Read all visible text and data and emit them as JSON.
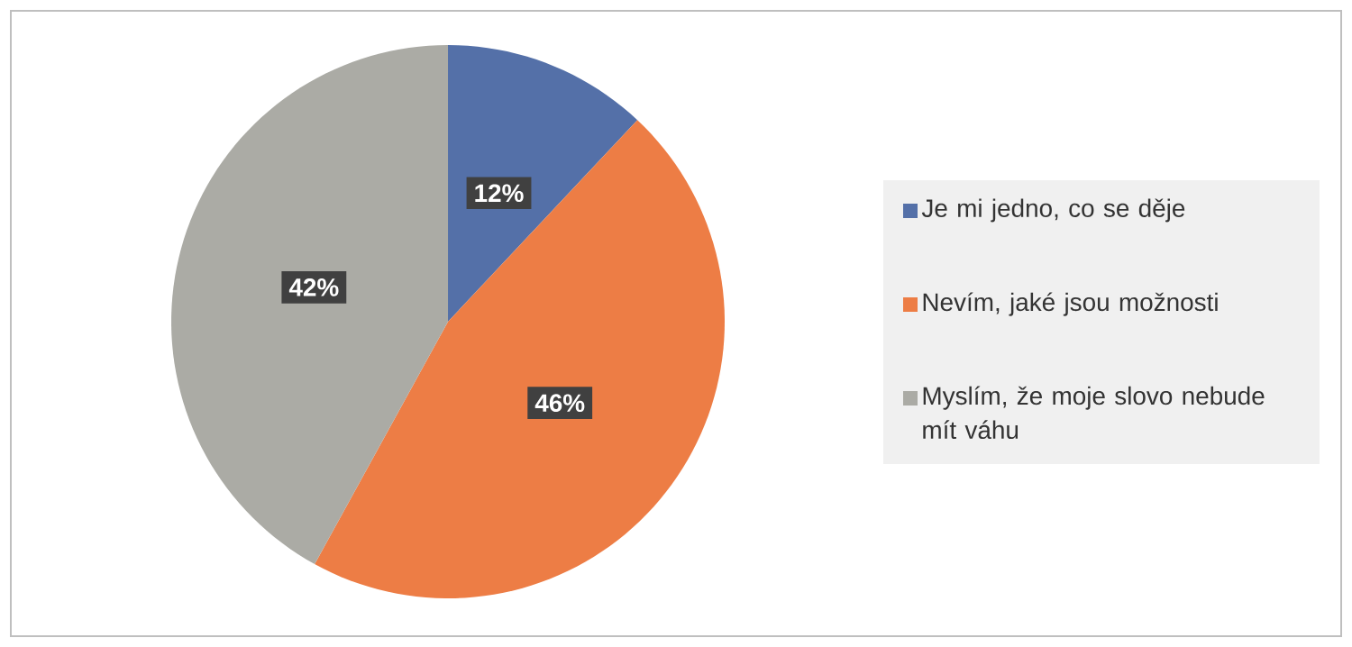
{
  "chart_data": {
    "type": "pie",
    "categories": [
      "Je mi jedno, co se děje",
      "Nevím, jaké jsou možnosti",
      "Myslím, že moje slovo nebude mít váhu"
    ],
    "values": [
      12,
      46,
      42
    ],
    "value_labels": [
      "12%",
      "46%",
      "42%"
    ],
    "colors": [
      "#5470A8",
      "#ED7D45",
      "#ABABA5"
    ],
    "legend": "right"
  }
}
